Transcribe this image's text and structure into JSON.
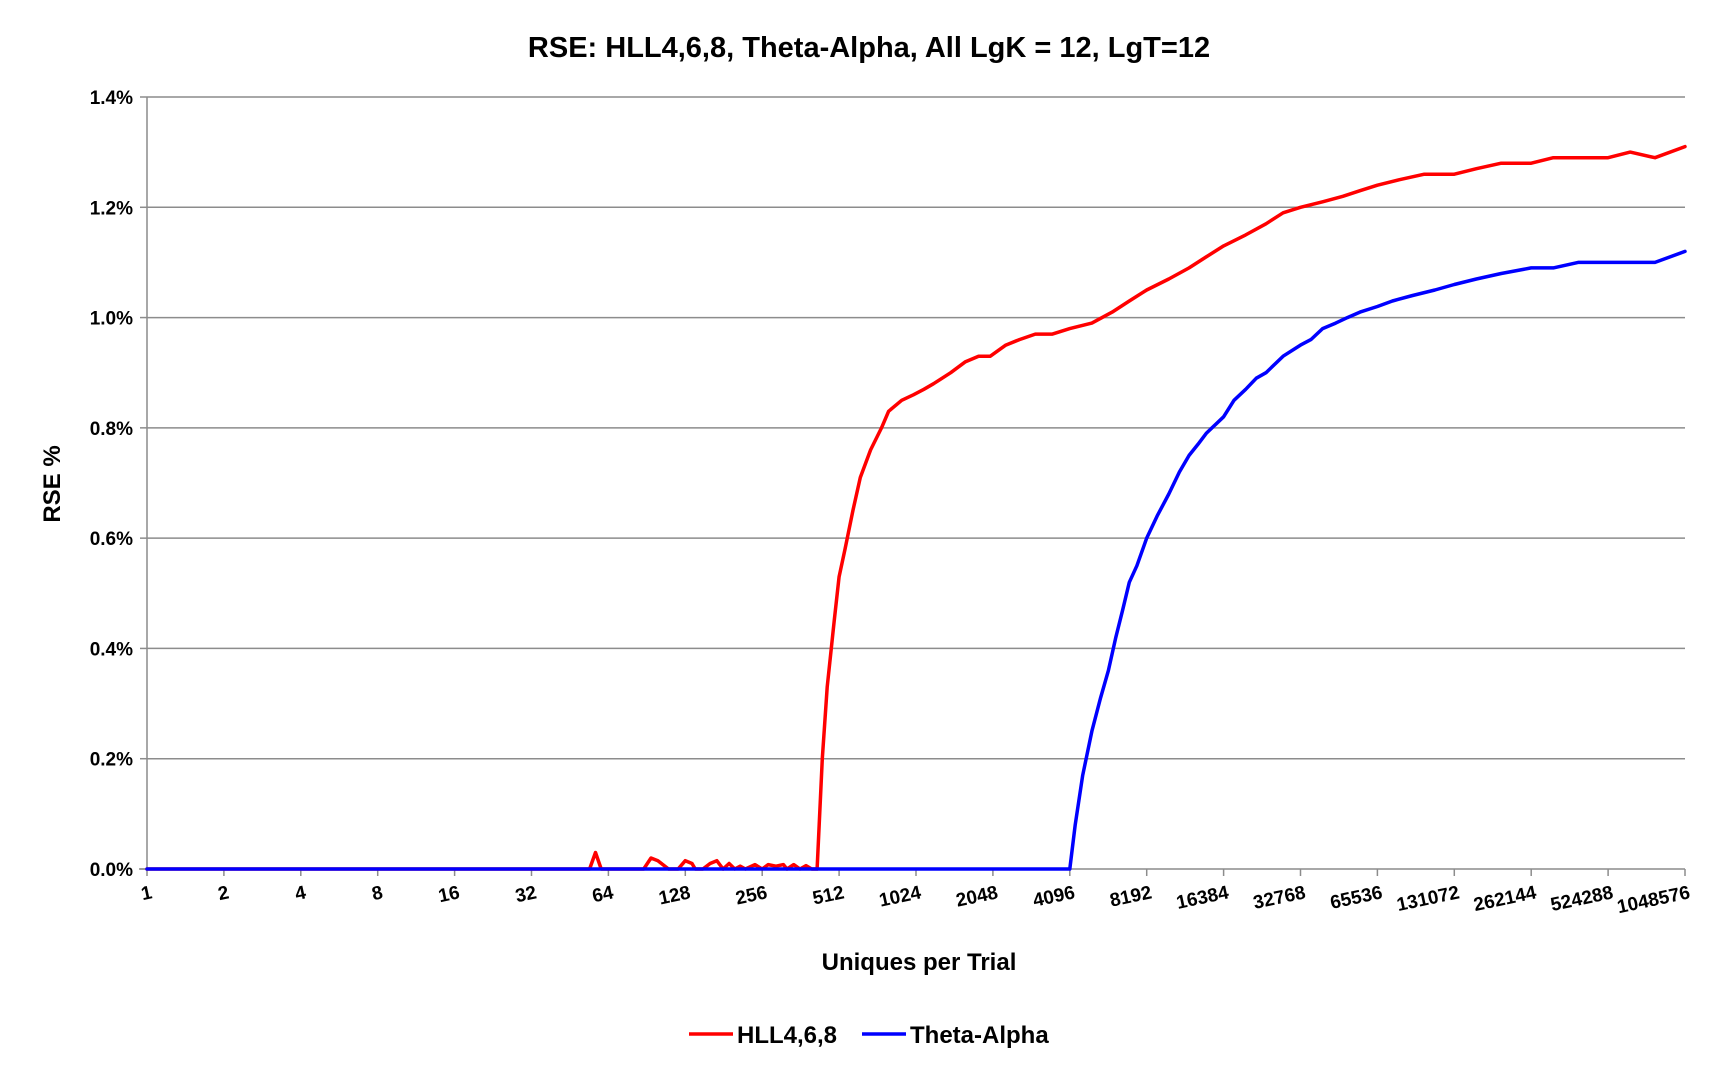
{
  "chart_data": {
    "type": "line",
    "title": "RSE: HLL4,6,8, Theta-Alpha, All LgK = 12, LgT=12",
    "xlabel": "Uniques per Trial",
    "ylabel": "RSE %",
    "x_scale": "log2",
    "x_tick_labels": [
      "1",
      "2",
      "4",
      "8",
      "16",
      "32",
      "64",
      "128",
      "256",
      "512",
      "1024",
      "2048",
      "4096",
      "8192",
      "16384",
      "32768",
      "65536",
      "131072",
      "262144",
      "524288",
      "1048576"
    ],
    "xlim": [
      1,
      1048576
    ],
    "y_tick_labels": [
      "0.0%",
      "0.2%",
      "0.4%",
      "0.6%",
      "0.8%",
      "1.0%",
      "1.2%",
      "1.4%"
    ],
    "ylim": [
      0,
      1.4
    ],
    "grid": "horizontal",
    "legend_position": "bottom",
    "series": [
      {
        "name": "HLL4,6,8",
        "color": "#ff0000",
        "x": [
          1,
          4,
          16,
          32,
          48,
          54,
          57,
          60,
          64,
          72,
          80,
          88,
          94,
          100,
          110,
          120,
          128,
          136,
          140,
          150,
          160,
          170,
          180,
          190,
          200,
          210,
          220,
          240,
          256,
          270,
          290,
          310,
          320,
          340,
          360,
          380,
          400,
          410,
          420,
          440,
          460,
          490,
          512,
          540,
          580,
          620,
          680,
          750,
          800,
          900,
          1000,
          1100,
          1200,
          1400,
          1600,
          1800,
          2000,
          2300,
          2600,
          3000,
          3500,
          4096,
          5000,
          6000,
          7000,
          8192,
          10000,
          12000,
          14000,
          16384,
          20000,
          24000,
          28000,
          32768,
          40000,
          48000,
          56000,
          65536,
          80000,
          100000,
          131072,
          160000,
          200000,
          262144,
          320000,
          400000,
          524288,
          640000,
          800000,
          1048576
        ],
        "y": [
          0.0,
          0.0,
          0.0,
          0.0,
          0.0,
          0.0,
          0.03,
          0.0,
          0.0,
          0.0,
          0.0,
          0.0,
          0.02,
          0.015,
          0.0,
          0.0,
          0.015,
          0.01,
          0.0,
          0.0,
          0.01,
          0.015,
          0.0,
          0.01,
          0.0,
          0.005,
          0.0,
          0.008,
          0.0,
          0.008,
          0.005,
          0.008,
          0.0,
          0.008,
          0.0,
          0.006,
          0.0,
          0.0,
          0.0,
          0.2,
          0.33,
          0.45,
          0.53,
          0.58,
          0.65,
          0.71,
          0.76,
          0.8,
          0.83,
          0.85,
          0.86,
          0.87,
          0.88,
          0.9,
          0.92,
          0.93,
          0.93,
          0.95,
          0.96,
          0.97,
          0.97,
          0.98,
          0.99,
          1.01,
          1.03,
          1.05,
          1.07,
          1.09,
          1.11,
          1.13,
          1.15,
          1.17,
          1.19,
          1.2,
          1.21,
          1.22,
          1.23,
          1.24,
          1.25,
          1.26,
          1.26,
          1.27,
          1.28,
          1.28,
          1.29,
          1.29,
          1.29,
          1.3,
          1.29,
          1.31
        ]
      },
      {
        "name": "Theta-Alpha",
        "color": "#0000ff",
        "x": [
          1,
          16,
          256,
          4096,
          4300,
          4600,
          5000,
          5400,
          5800,
          6200,
          6600,
          7000,
          7500,
          8192,
          9000,
          10000,
          11000,
          12000,
          13000,
          14000,
          16384,
          18000,
          20000,
          22000,
          24000,
          28000,
          32768,
          36000,
          40000,
          45000,
          50000,
          56000,
          65536,
          75000,
          90000,
          110000,
          131072,
          160000,
          200000,
          262144,
          320000,
          400000,
          524288,
          640000,
          800000,
          1048576
        ],
        "y": [
          0.0,
          0.0,
          0.0,
          0.0,
          0.08,
          0.17,
          0.25,
          0.31,
          0.36,
          0.42,
          0.47,
          0.52,
          0.55,
          0.6,
          0.64,
          0.68,
          0.72,
          0.75,
          0.77,
          0.79,
          0.82,
          0.85,
          0.87,
          0.89,
          0.9,
          0.93,
          0.95,
          0.96,
          0.98,
          0.99,
          1.0,
          1.01,
          1.02,
          1.03,
          1.04,
          1.05,
          1.06,
          1.07,
          1.08,
          1.09,
          1.09,
          1.1,
          1.1,
          1.1,
          1.1,
          1.12
        ]
      }
    ]
  }
}
